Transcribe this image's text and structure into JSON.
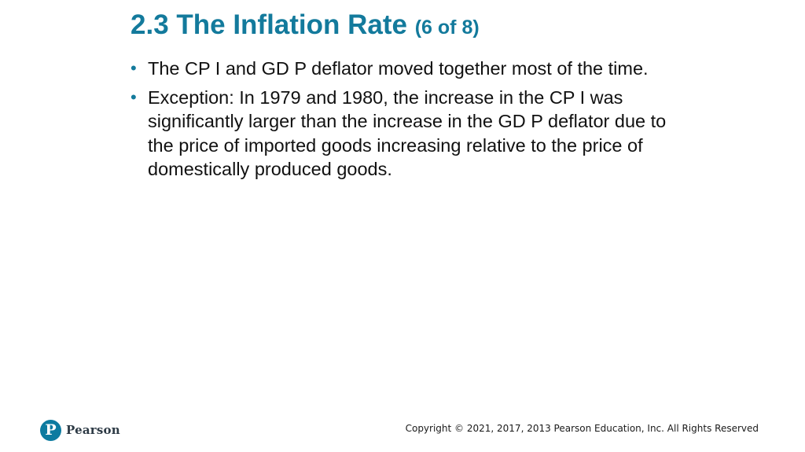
{
  "slide": {
    "title": "2.3 The Inflation Rate",
    "title_counter": "(6 of 8)",
    "bullets": [
      "The CP I and GD P deflator moved together most of the time.",
      "Exception: In 1979 and 1980, the increase in the CP I was significantly larger than the increase in the GD P deflator due to the price of imported goods increasing relative to the price of domestically produced goods."
    ]
  },
  "footer": {
    "logo_letter": "P",
    "logo_text": "Pearson",
    "copyright": "Copyright © 2021, 2017, 2013 Pearson Education, Inc. All Rights Reserved"
  },
  "colors": {
    "title": "#137a9c",
    "bullet_marker": "#137a9c",
    "logo": "#0d7ba0"
  }
}
